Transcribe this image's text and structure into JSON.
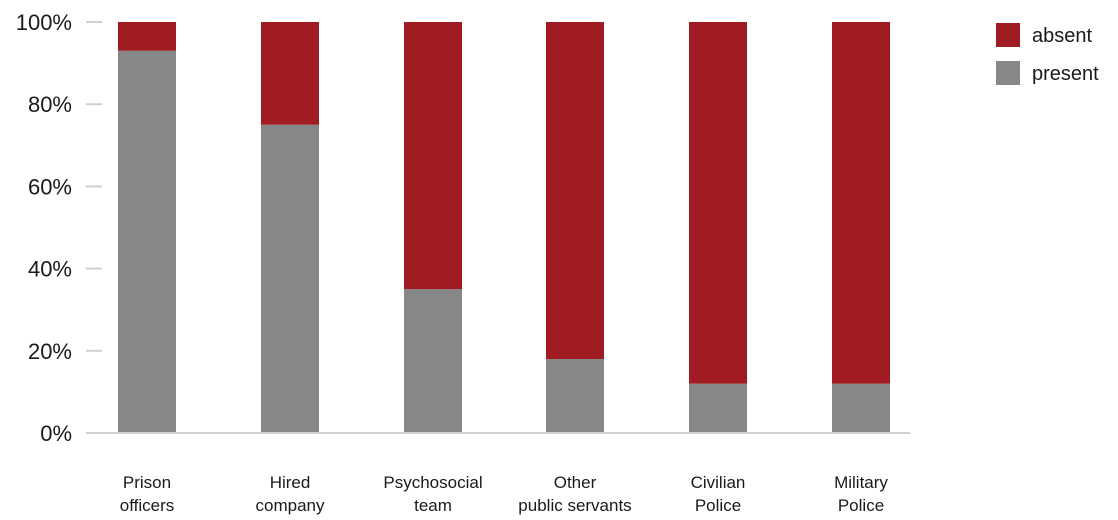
{
  "chart_data": {
    "type": "bar",
    "stacked": true,
    "categories": [
      [
        "Prison",
        "officers"
      ],
      [
        "Hired",
        "company"
      ],
      [
        "Psychosocial",
        "team"
      ],
      [
        "Other",
        "public servants"
      ],
      [
        "Civilian",
        "Police"
      ],
      [
        "Military",
        "Police"
      ]
    ],
    "series": [
      {
        "name": "present",
        "color": "#858789",
        "values": [
          93,
          75,
          35,
          18,
          12,
          12
        ]
      },
      {
        "name": "absent",
        "color": "#a11c22",
        "values": [
          7,
          25,
          65,
          82,
          88,
          88
        ]
      }
    ],
    "y_ticks": [
      "0%",
      "20%",
      "40%",
      "60%",
      "80%",
      "100%"
    ],
    "ylim": [
      0,
      100
    ],
    "legend_position": "top-right",
    "legend_order": [
      "absent",
      "present"
    ],
    "grid": false
  }
}
